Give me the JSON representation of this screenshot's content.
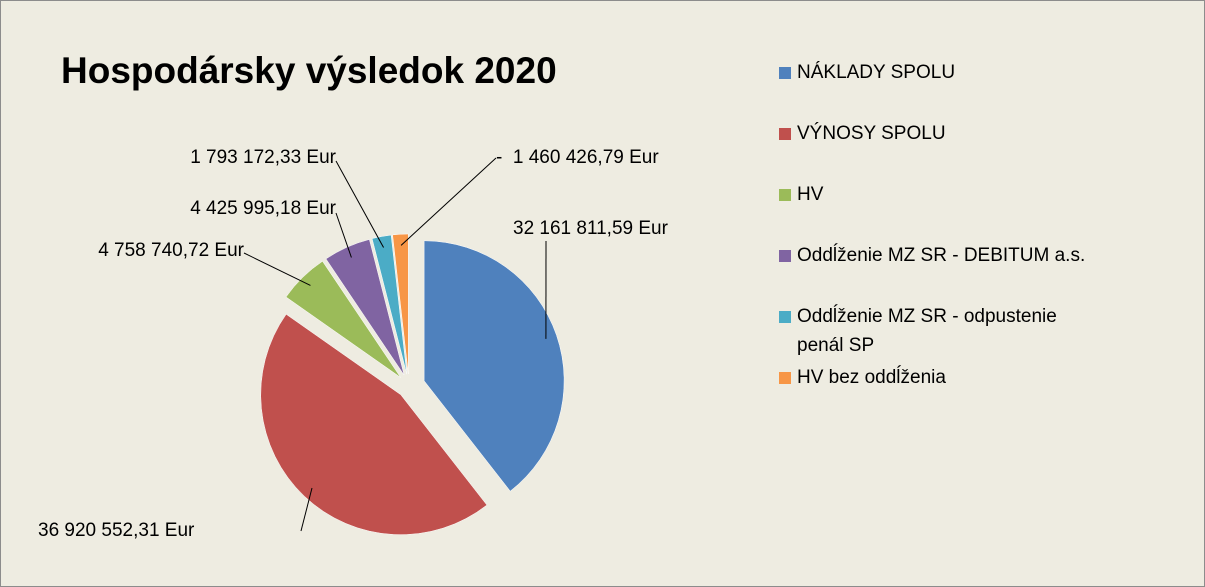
{
  "chart_data": {
    "type": "pie",
    "title": "Hospodársky výsledok 2020",
    "categories": [
      "NÁKLADY SPOLU",
      "VÝNOSY SPOLU",
      "HV",
      "Oddĺženie MZ SR - DEBITUM a.s.",
      "Oddĺženie MZ SR - odpustenie penál SP",
      "HV bez oddĺženia"
    ],
    "values": [
      32161811.59,
      36920552.31,
      4758740.72,
      4425995.18,
      1793172.33,
      -1460426.79
    ],
    "value_labels": [
      "32 161 811,59 Eur",
      "36 920 552,31 Eur",
      "4 758 740,72 Eur",
      "4 425 995,18 Eur",
      "1 793 172,33 Eur",
      "-  1 460 426,79 Eur"
    ],
    "colors": [
      "#4f81bd",
      "#c0504d",
      "#9bbb59",
      "#8064a2",
      "#4bacc6",
      "#f79646"
    ],
    "legend": "right"
  }
}
